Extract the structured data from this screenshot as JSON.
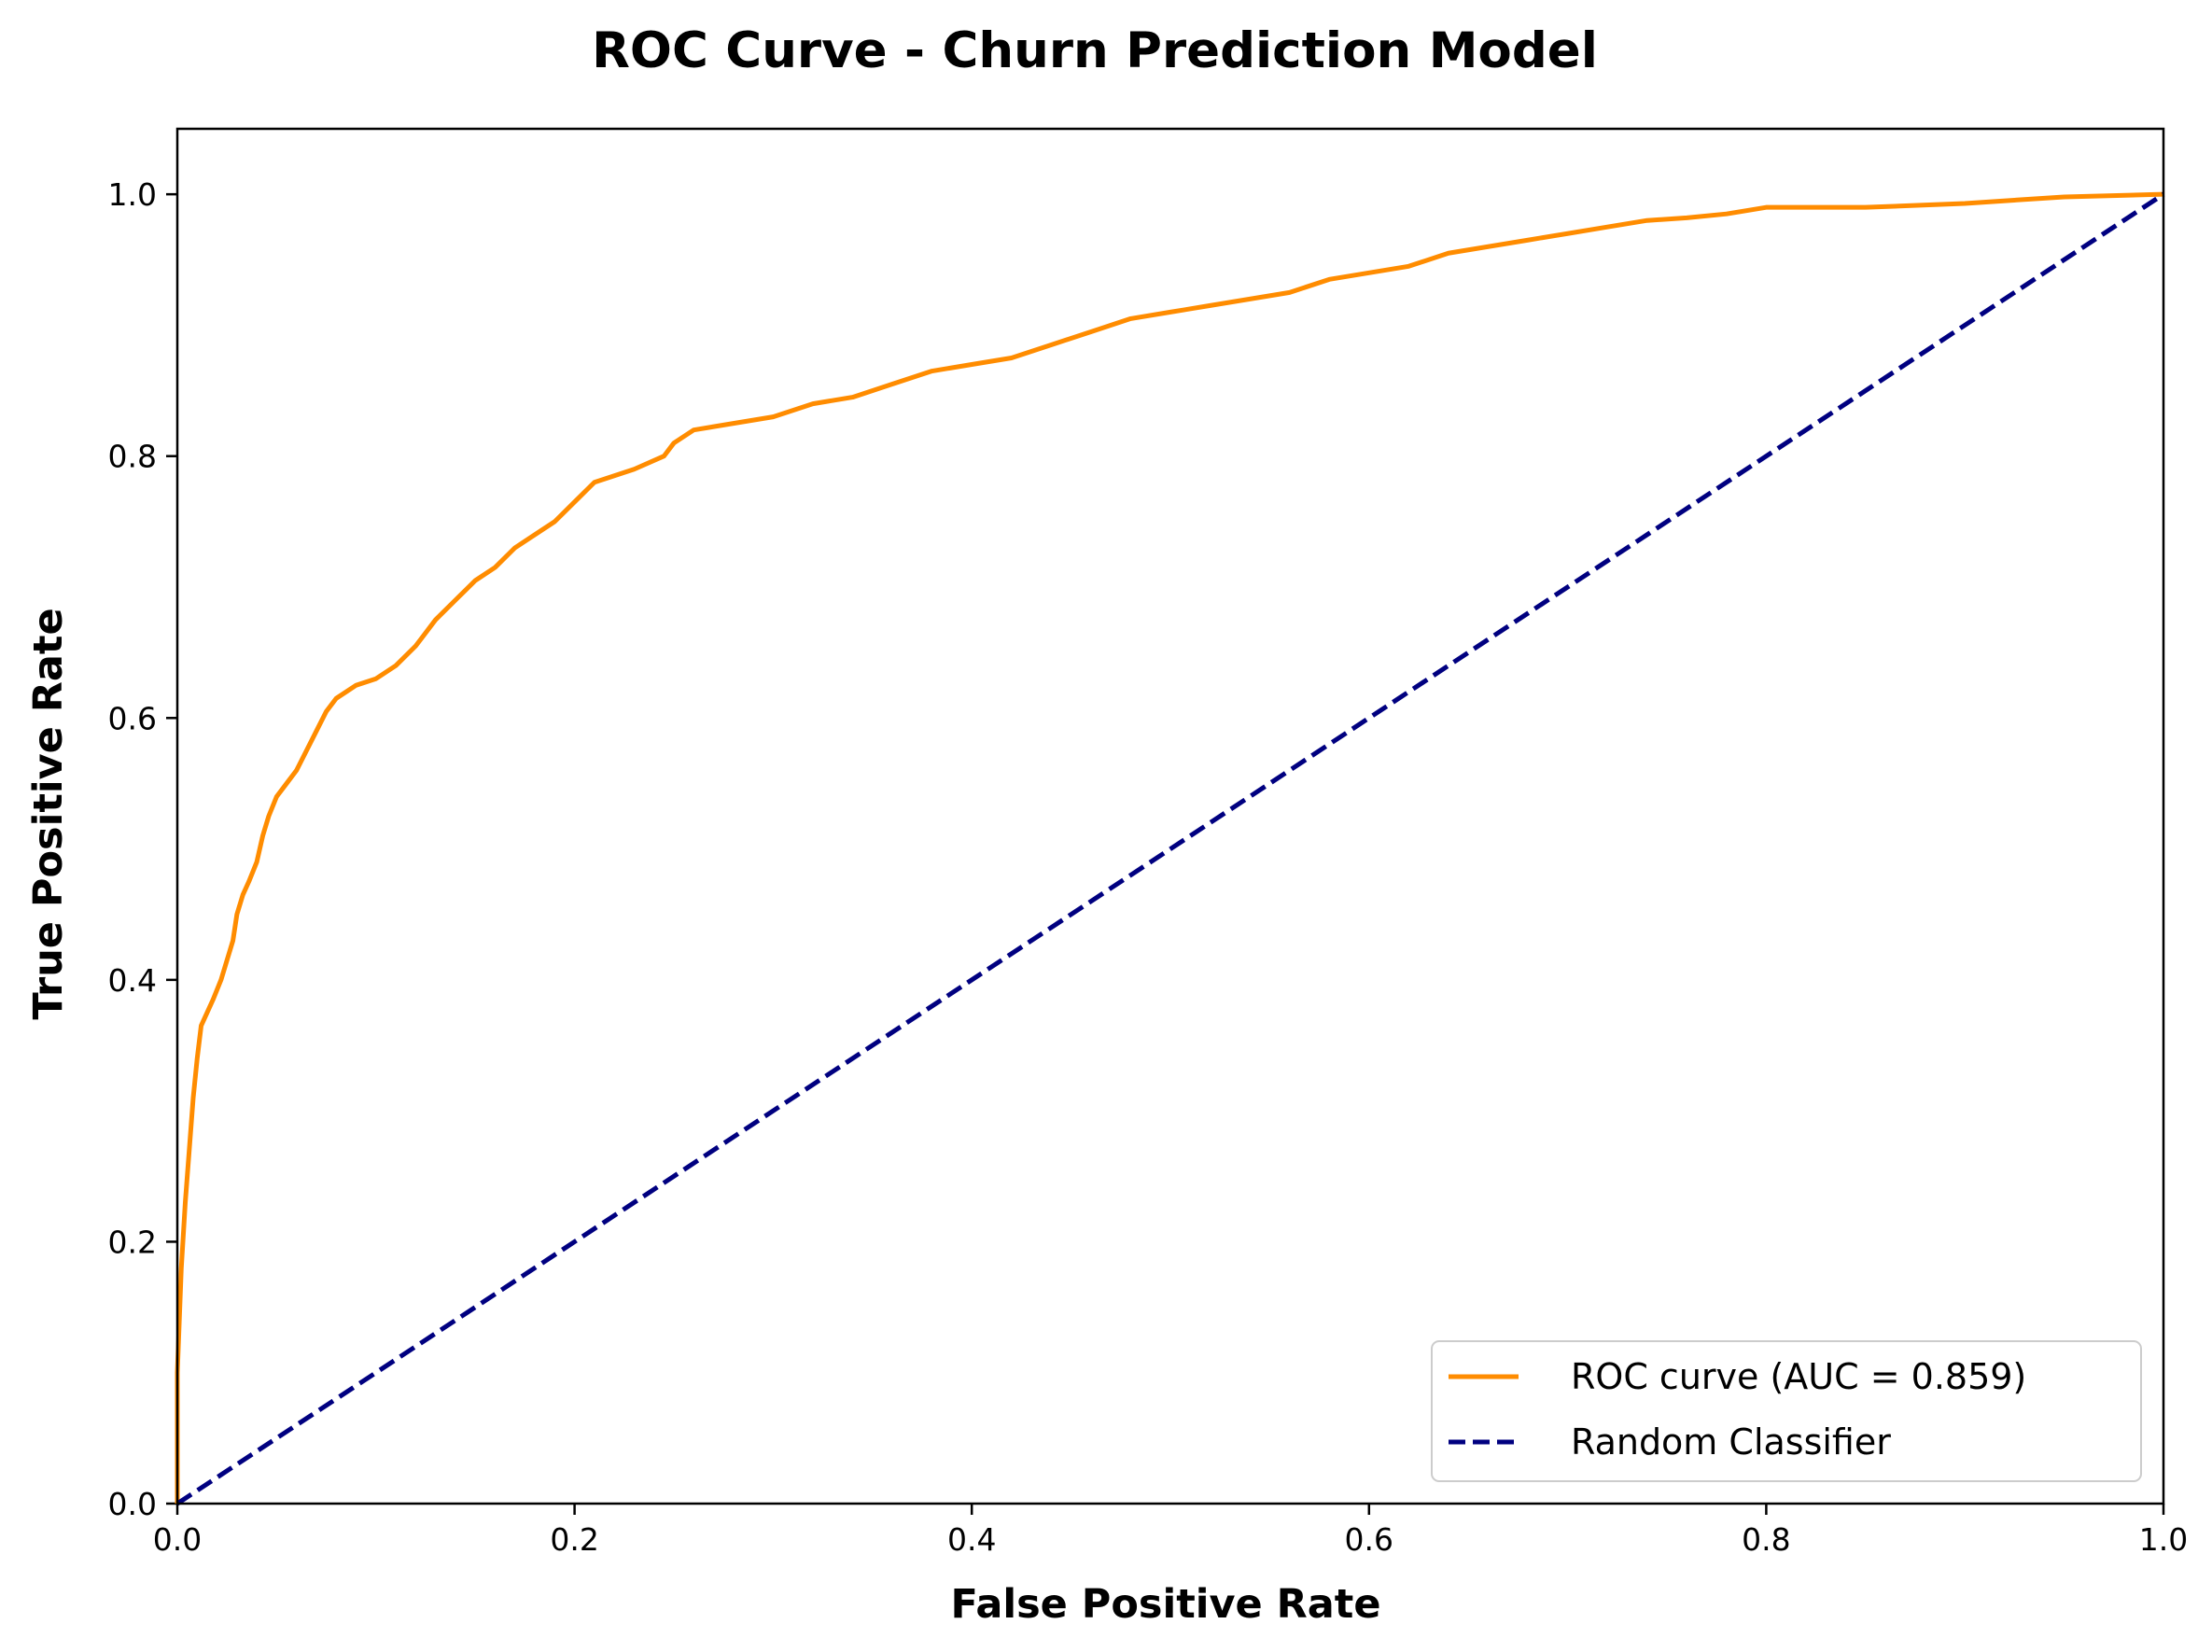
{
  "chart_data": {
    "type": "line",
    "title": "ROC Curve - Churn Prediction Model",
    "xlabel": "False Positive Rate",
    "ylabel": "True Positive Rate",
    "xlim": [
      0.0,
      1.0
    ],
    "ylim": [
      0.0,
      1.05
    ],
    "xticks": [
      "0.0",
      "0.2",
      "0.4",
      "0.6",
      "0.8",
      "1.0"
    ],
    "yticks": [
      "0.0",
      "0.2",
      "0.4",
      "0.6",
      "0.8",
      "1.0"
    ],
    "grid": false,
    "legend_position": "lower-right",
    "series": [
      {
        "name": "ROC curve (AUC = 0.859)",
        "color": "#ff8c00",
        "style": "solid",
        "x": [
          0.0,
          0.0,
          0.002,
          0.004,
          0.006,
          0.008,
          0.01,
          0.012,
          0.015,
          0.018,
          0.022,
          0.025,
          0.028,
          0.03,
          0.033,
          0.036,
          0.04,
          0.043,
          0.046,
          0.05,
          0.055,
          0.06,
          0.065,
          0.07,
          0.075,
          0.08,
          0.085,
          0.09,
          0.1,
          0.11,
          0.12,
          0.125,
          0.13,
          0.14,
          0.15,
          0.16,
          0.17,
          0.18,
          0.19,
          0.2,
          0.21,
          0.22,
          0.23,
          0.245,
          0.25,
          0.26,
          0.28,
          0.3,
          0.32,
          0.34,
          0.36,
          0.38,
          0.4,
          0.42,
          0.44,
          0.46,
          0.48,
          0.5,
          0.52,
          0.54,
          0.56,
          0.58,
          0.6,
          0.62,
          0.64,
          0.66,
          0.68,
          0.7,
          0.72,
          0.74,
          0.76,
          0.78,
          0.8,
          0.85,
          0.9,
          0.95,
          1.0
        ],
        "y": [
          0.0,
          0.1,
          0.18,
          0.23,
          0.27,
          0.31,
          0.34,
          0.365,
          0.375,
          0.385,
          0.4,
          0.415,
          0.43,
          0.45,
          0.465,
          0.475,
          0.49,
          0.51,
          0.525,
          0.54,
          0.55,
          0.56,
          0.575,
          0.59,
          0.605,
          0.615,
          0.62,
          0.625,
          0.63,
          0.64,
          0.655,
          0.665,
          0.675,
          0.69,
          0.705,
          0.715,
          0.73,
          0.74,
          0.75,
          0.765,
          0.78,
          0.785,
          0.79,
          0.8,
          0.81,
          0.82,
          0.825,
          0.83,
          0.84,
          0.845,
          0.855,
          0.865,
          0.87,
          0.875,
          0.885,
          0.895,
          0.905,
          0.91,
          0.915,
          0.92,
          0.925,
          0.935,
          0.94,
          0.945,
          0.955,
          0.96,
          0.965,
          0.97,
          0.975,
          0.98,
          0.982,
          0.985,
          0.99,
          0.99,
          0.993,
          0.998,
          1.0
        ]
      },
      {
        "name": "Random Classifier",
        "color": "#000080",
        "style": "dashed",
        "x": [
          0.0,
          1.0
        ],
        "y": [
          0.0,
          1.0
        ]
      }
    ]
  }
}
